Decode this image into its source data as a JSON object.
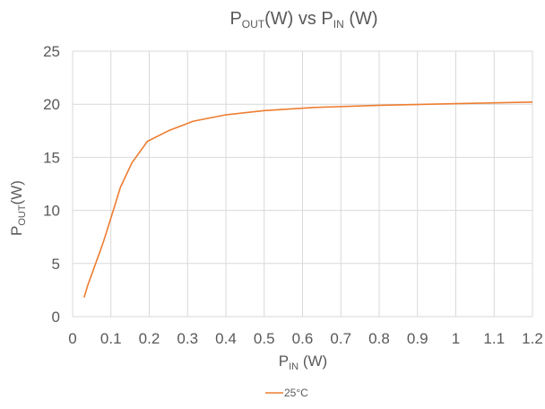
{
  "chart_data": {
    "type": "line",
    "title": {
      "main": "P",
      "sub": "OUT",
      "rest": "(W) vs P",
      "sub2": "IN",
      "rest2": " (W)"
    },
    "xlabel": {
      "main": "P",
      "sub": "IN",
      "rest": " (W)"
    },
    "ylabel": {
      "main": "P",
      "sub": "OUT",
      "rest": "(W)"
    },
    "xlim": [
      0,
      1.2
    ],
    "ylim": [
      0,
      25
    ],
    "x_ticks": [
      "0",
      "0.1",
      "0.2",
      "0.3",
      "0.4",
      "0.5",
      "0.6",
      "0.7",
      "0.8",
      "0.9",
      "1",
      "1.1",
      "1.2"
    ],
    "y_ticks": [
      "0",
      "5",
      "10",
      "15",
      "20",
      "25"
    ],
    "grid": true,
    "legend_position": "bottom",
    "series": [
      {
        "name": "25°C",
        "color": "#ED7D31",
        "x": [
          0.03,
          0.04,
          0.06,
          0.08,
          0.1,
          0.125,
          0.155,
          0.195,
          0.25,
          0.315,
          0.4,
          0.5,
          0.63,
          0.8,
          1.0,
          1.2
        ],
        "y": [
          1.8,
          3.0,
          5.0,
          7.0,
          9.3,
          12.2,
          14.5,
          16.5,
          17.5,
          18.4,
          19.0,
          19.4,
          19.7,
          19.9,
          20.05,
          20.2
        ]
      }
    ]
  }
}
